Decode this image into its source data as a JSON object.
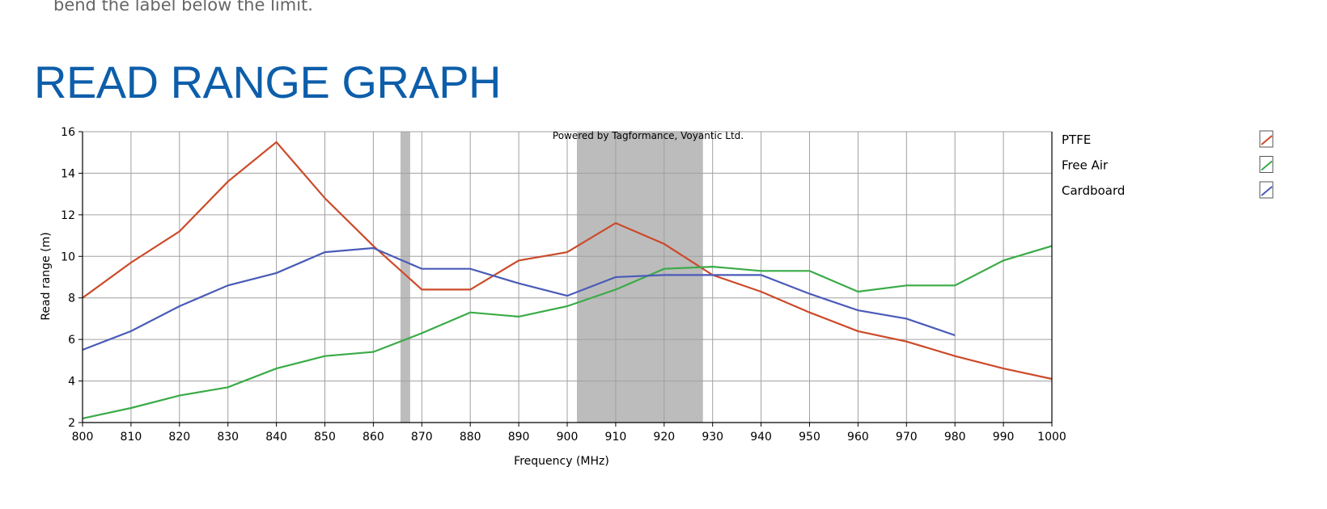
{
  "page": {
    "intro_text": "bend the label below the limit.",
    "section_title": "READ RANGE GRAPH"
  },
  "colors": {
    "ptfe": "#cc4a2a",
    "free_air": "#3aab47",
    "cardboard": "#4a5bb8",
    "band": "#bcbcbc",
    "grid": "#a0a0a0",
    "title": "#0d5eaa"
  },
  "chart_data": {
    "type": "line",
    "title": "",
    "watermark": "Powered by Tagformance, Voyantic Ltd.",
    "xlabel": "Frequency (MHz)",
    "ylabel": "Read range (m)",
    "xlim": [
      800,
      1000
    ],
    "ylim": [
      2,
      16
    ],
    "x_ticks": [
      800,
      810,
      820,
      830,
      840,
      850,
      860,
      870,
      880,
      890,
      900,
      910,
      920,
      930,
      940,
      950,
      960,
      970,
      980,
      990,
      1000
    ],
    "y_ticks": [
      2,
      4,
      6,
      8,
      10,
      12,
      14,
      16
    ],
    "grid": true,
    "legend_position": "right",
    "shaded_bands": [
      {
        "from": 865.6,
        "to": 867.6
      },
      {
        "from": 902,
        "to": 928
      }
    ],
    "series": [
      {
        "name": "PTFE",
        "color_key": "ptfe",
        "x": [
          800,
          810,
          820,
          830,
          840,
          850,
          860,
          870,
          880,
          890,
          900,
          910,
          920,
          930,
          940,
          950,
          960,
          970,
          980,
          990,
          1000
        ],
        "y": [
          8.0,
          9.7,
          11.2,
          13.6,
          15.5,
          12.8,
          10.5,
          8.4,
          8.4,
          9.8,
          10.2,
          11.6,
          10.6,
          9.1,
          8.3,
          7.3,
          6.4,
          5.9,
          5.2,
          4.6,
          4.1
        ]
      },
      {
        "name": "Free Air",
        "color_key": "free_air",
        "x": [
          800,
          810,
          820,
          830,
          840,
          850,
          860,
          870,
          880,
          890,
          900,
          910,
          920,
          930,
          940,
          950,
          960,
          970,
          980,
          990,
          1000
        ],
        "y": [
          2.2,
          2.7,
          3.3,
          3.7,
          4.6,
          5.2,
          5.4,
          6.3,
          7.3,
          7.1,
          7.6,
          8.4,
          9.4,
          9.5,
          9.3,
          9.3,
          8.3,
          8.6,
          8.6,
          9.8,
          10.5
        ]
      },
      {
        "name": "Cardboard",
        "color_key": "cardboard",
        "x": [
          800,
          810,
          820,
          830,
          840,
          850,
          860,
          870,
          880,
          890,
          900,
          910,
          920,
          930,
          940,
          950,
          960,
          970,
          980
        ],
        "y": [
          5.5,
          6.4,
          7.6,
          8.6,
          9.2,
          10.2,
          10.4,
          9.4,
          9.4,
          8.7,
          8.1,
          9.0,
          9.1,
          9.1,
          9.1,
          8.2,
          7.4,
          7.0,
          6.2
        ]
      }
    ]
  }
}
